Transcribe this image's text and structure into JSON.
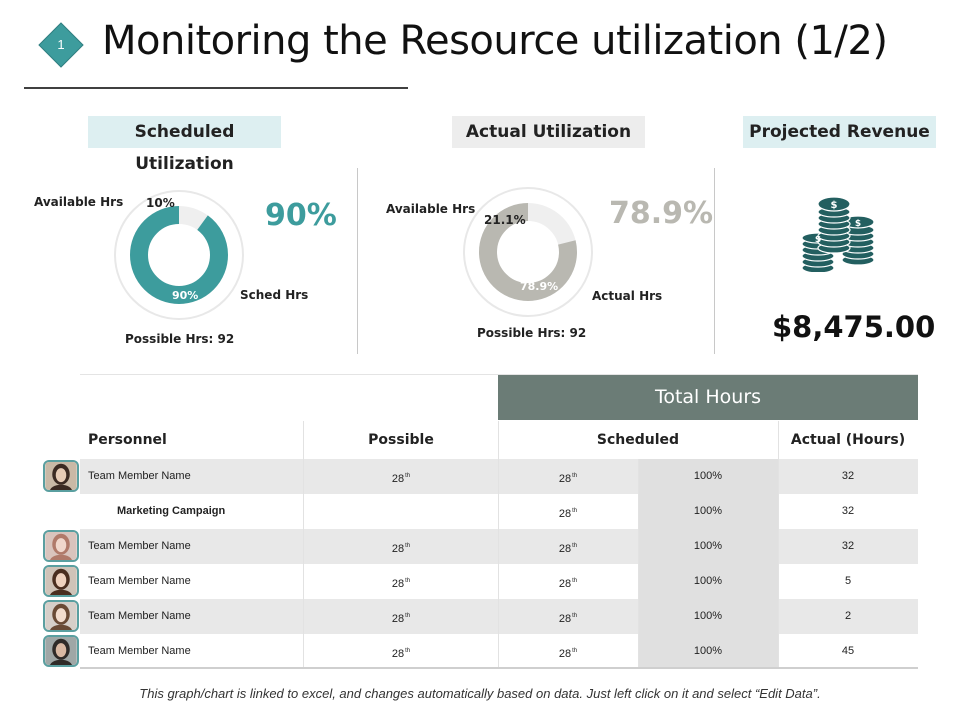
{
  "slide": {
    "number": "1",
    "title": "Monitoring the Resource utilization (1/2)",
    "accent_color": "#3d9c9d"
  },
  "sections": {
    "scheduled": {
      "heading": "Scheduled Utilization",
      "available_label": "Available  Hrs",
      "sched_label": "Sched Hrs",
      "possible_label": "Possible Hrs: 92",
      "available_pct": "10%",
      "used_pct": "90%",
      "big_pct": "90%",
      "used_fraction": 0.9,
      "ring_color": "#3d9c9d"
    },
    "actual": {
      "heading": "Actual Utilization",
      "available_label": "Available  Hrs",
      "actual_label": "Actual Hrs",
      "possible_label": "Possible Hrs:  92",
      "available_pct": "21.1%",
      "used_pct": "78.9%",
      "big_pct": "78.9%",
      "used_fraction": 0.789,
      "ring_color": "#b9b8b1"
    },
    "revenue": {
      "heading": "Projected Revenue",
      "amount": "$8,475.00",
      "icon": "money-coins-icon"
    }
  },
  "table": {
    "group_header": "Total Hours",
    "columns": {
      "personnel": "Personnel",
      "possible": "Possible",
      "scheduled": "Scheduled",
      "actual": "Actual (Hours)"
    },
    "rows": [
      {
        "name": "Team Member Name",
        "possible": "28",
        "possible_sup": "th",
        "scheduled": "28",
        "scheduled_sup": "th",
        "percent": "100%",
        "actual": "32"
      },
      {
        "name": "Marketing Campaign",
        "possible": "",
        "possible_sup": "",
        "scheduled": "28",
        "scheduled_sup": "th",
        "percent": "100%",
        "actual": "32"
      },
      {
        "name": "Team Member Name",
        "possible": "28",
        "possible_sup": "th",
        "scheduled": "28",
        "scheduled_sup": "th",
        "percent": "100%",
        "actual": "32"
      },
      {
        "name": "Team Member Name",
        "possible": "28",
        "possible_sup": "th",
        "scheduled": "28",
        "scheduled_sup": "th",
        "percent": "100%",
        "actual": "5"
      },
      {
        "name": "Team Member Name",
        "possible": "28",
        "possible_sup": "th",
        "scheduled": "28",
        "scheduled_sup": "th",
        "percent": "100%",
        "actual": "2"
      },
      {
        "name": "Team Member Name",
        "possible": "28",
        "possible_sup": "th",
        "scheduled": "28",
        "scheduled_sup": "th",
        "percent": "100%",
        "actual": "45"
      }
    ]
  },
  "footnote": "This graph/chart is linked to excel, and changes automatically based on data.  Just left click on it and select “Edit Data”."
}
